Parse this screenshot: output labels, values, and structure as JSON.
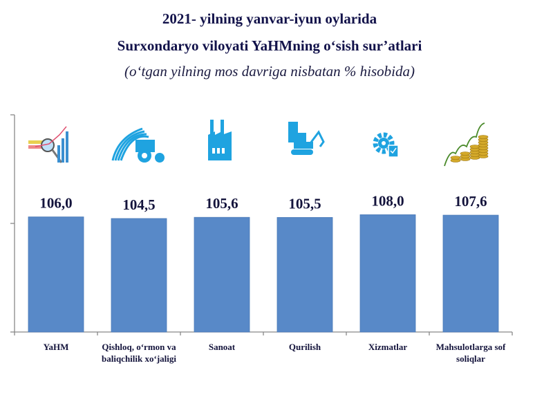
{
  "chart_data": {
    "type": "bar",
    "title": [
      "2021- yilning yanvar-iyun oylarida",
      "Surxondaryo viloyati YaHMning o‘sish sur’atlari"
    ],
    "subtitle": "(o‘tgan yilning mos davriga nisbatan % hisobida)",
    "categories": [
      [
        "YaHM"
      ],
      [
        "Qishloq, o‘rmon va",
        "baliqchilik xo‘jaligi"
      ],
      [
        "Sanoat"
      ],
      [
        "Qurilish"
      ],
      [
        "Xizmatlar"
      ],
      [
        "Mahsulotlarga sof",
        "soliqlar"
      ]
    ],
    "values": [
      106.0,
      104.5,
      105.6,
      105.5,
      108.0,
      107.6
    ],
    "value_labels": [
      "106,0",
      "104,5",
      "105,6",
      "105,5",
      "108,0",
      "107,6"
    ],
    "icons": [
      "analytics-icon",
      "tractor-icon",
      "factory-icon",
      "construction-icon",
      "service-gear-icon",
      "coins-growth-icon"
    ],
    "ylim": [
      0,
      200
    ],
    "yticks": [
      0,
      100,
      200
    ],
    "ytick_labels_visible": false,
    "grid": false,
    "bar_color": "#5889c8",
    "icon_color": "#1fa3e0",
    "xlabel": "",
    "ylabel": ""
  }
}
